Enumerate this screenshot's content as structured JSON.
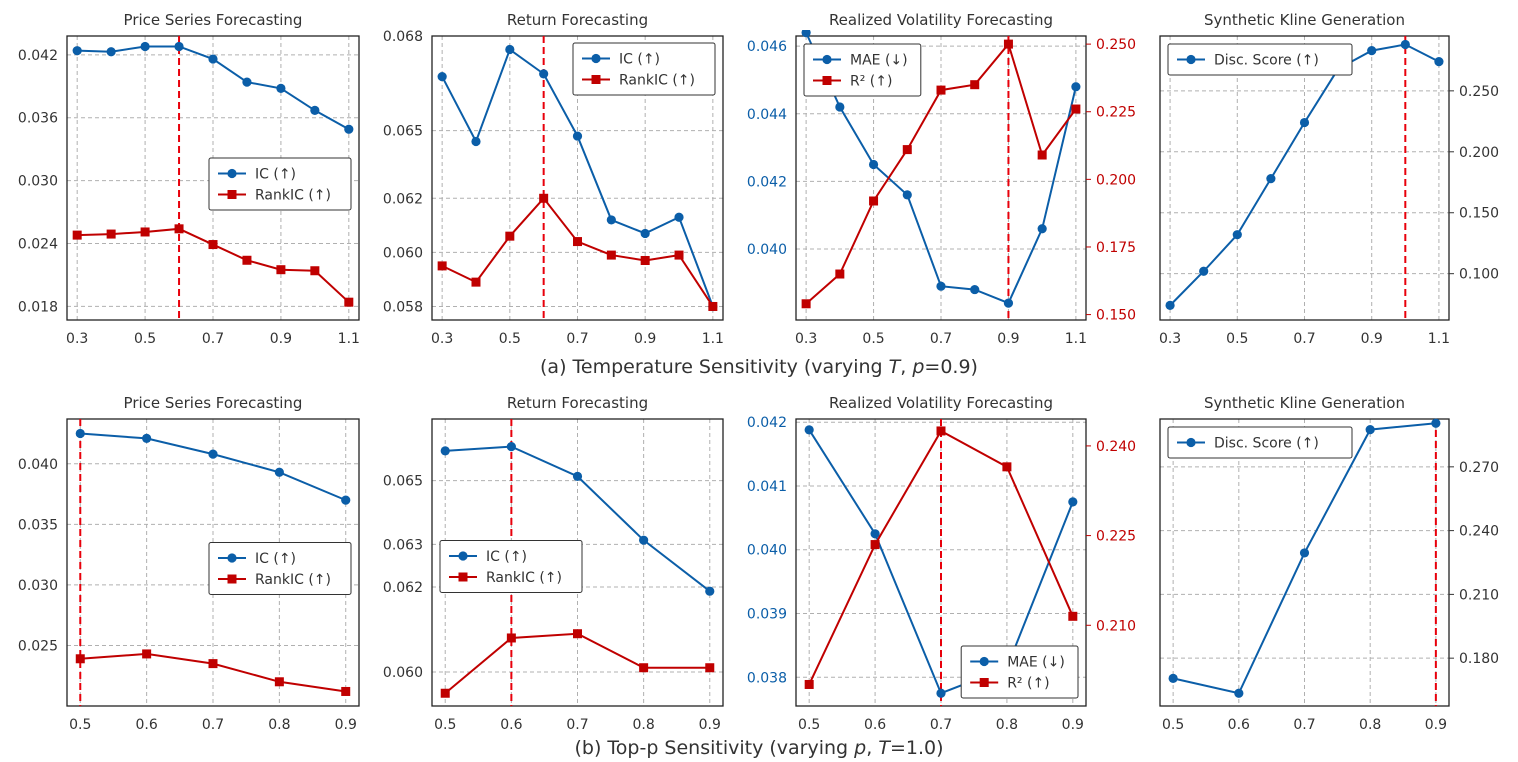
{
  "colors": {
    "blue": "#0b5ea8",
    "red": "#c00000",
    "marker_line": "#e8000b",
    "grid": "#b0b0b0",
    "text": "#333333"
  },
  "captions": {
    "row_a": {
      "prefix": "(a) Temperature Sensitivity (varying ",
      "var1": "T",
      "mid": ", ",
      "var2": "p",
      "suffix": "=0.9)"
    },
    "row_b": {
      "prefix": "(b) Top-p Sensitivity (varying ",
      "var1": "p",
      "mid": ", ",
      "var2": "T",
      "suffix": "=1.0)"
    }
  },
  "chart_data": [
    {
      "type": "line",
      "title": "Price Series Forecasting",
      "x": [
        0.3,
        0.4,
        0.5,
        0.6,
        0.7,
        0.8,
        0.9,
        1.0,
        1.1
      ],
      "xlim": [
        0.27,
        1.13
      ],
      "xticks": [
        0.3,
        0.5,
        0.7,
        0.9,
        1.1
      ],
      "xtick_labels": [
        "0.3",
        "0.5",
        "0.7",
        "0.9",
        "1.1"
      ],
      "ylim": [
        0.0167,
        0.0438
      ],
      "yticks": [
        0.018,
        0.024,
        0.03,
        0.036,
        0.042
      ],
      "ytick_labels": [
        "0.018",
        "0.024",
        "0.030",
        "0.036",
        "0.042"
      ],
      "series": [
        {
          "name": "IC (↑)",
          "color": "#0b5ea8",
          "marker": "circle",
          "values": [
            0.0424,
            0.0423,
            0.0428,
            0.0428,
            0.0416,
            0.0394,
            0.0388,
            0.0367,
            0.0349
          ]
        },
        {
          "name": "RankIC (↑)",
          "color": "#c00000",
          "marker": "square",
          "values": [
            0.0248,
            0.0249,
            0.0251,
            0.0254,
            0.0239,
            0.0224,
            0.0215,
            0.0214,
            0.0184
          ]
        }
      ],
      "vline": 0.6,
      "legend": "center-right"
    },
    {
      "type": "line",
      "title": "Return Forecasting",
      "x": [
        0.3,
        0.4,
        0.5,
        0.6,
        0.7,
        0.8,
        0.9,
        1.0,
        1.1
      ],
      "xlim": [
        0.27,
        1.13
      ],
      "xticks": [
        0.3,
        0.5,
        0.7,
        0.9,
        1.1
      ],
      "xtick_labels": [
        "0.3",
        "0.5",
        "0.7",
        "0.9",
        "1.1"
      ],
      "ylim": [
        0.0575,
        0.068
      ],
      "yticks": [
        0.058,
        0.06,
        0.062,
        0.0645,
        0.068
      ],
      "ytick_labels": [
        "0.058",
        "0.060",
        "0.062",
        "0.065",
        "0.068"
      ],
      "series": [
        {
          "name": "IC (↑)",
          "color": "#0b5ea8",
          "marker": "circle",
          "values": [
            0.0665,
            0.0641,
            0.0675,
            0.0666,
            0.0643,
            0.0612,
            0.0607,
            0.0613,
            0.058
          ]
        },
        {
          "name": "RankIC (↑)",
          "color": "#c00000",
          "marker": "square",
          "values": [
            0.0595,
            0.0589,
            0.0606,
            0.062,
            0.0604,
            0.0599,
            0.0597,
            0.0599,
            0.058
          ]
        }
      ],
      "vline": 0.6,
      "legend": "top-right"
    },
    {
      "type": "line",
      "title": "Realized Volatility Forecasting",
      "x": [
        0.3,
        0.4,
        0.5,
        0.6,
        0.7,
        0.8,
        0.9,
        1.0,
        1.1
      ],
      "xlim": [
        0.27,
        1.13
      ],
      "xticks": [
        0.3,
        0.5,
        0.7,
        0.9,
        1.1
      ],
      "xtick_labels": [
        "0.3",
        "0.5",
        "0.7",
        "0.9",
        "1.1"
      ],
      "ylim": [
        0.0379,
        0.0463
      ],
      "yticks": [
        0.04,
        0.042,
        0.044,
        0.046
      ],
      "ytick_labels": [
        "0.040",
        "0.042",
        "0.044",
        "0.046"
      ],
      "y2lim": [
        0.148,
        0.253
      ],
      "y2ticks": [
        0.15,
        0.175,
        0.2,
        0.225,
        0.25
      ],
      "y2tick_labels": [
        "0.150",
        "0.175",
        "0.200",
        "0.225",
        "0.250"
      ],
      "series": [
        {
          "name": "MAE (↓)",
          "color": "#0b5ea8",
          "marker": "circle",
          "axis": "left",
          "values": [
            0.0464,
            0.0442,
            0.0425,
            0.0416,
            0.0389,
            0.0388,
            0.0384,
            0.0406,
            0.0448
          ]
        },
        {
          "name": "R² (↑)",
          "color": "#c00000",
          "marker": "square",
          "axis": "right",
          "values": [
            0.154,
            0.165,
            0.192,
            0.211,
            0.233,
            0.235,
            0.25,
            0.209,
            0.226
          ]
        }
      ],
      "vline": 0.9,
      "legend": "top-left"
    },
    {
      "type": "line",
      "title": "Synthetic Kline Generation",
      "x": [
        0.3,
        0.4,
        0.5,
        0.6,
        0.7,
        0.8,
        0.9,
        1.0,
        1.1
      ],
      "xlim": [
        0.27,
        1.13
      ],
      "xticks": [
        0.3,
        0.5,
        0.7,
        0.9,
        1.1
      ],
      "xtick_labels": [
        "0.3",
        "0.5",
        "0.7",
        "0.9",
        "1.1"
      ],
      "y2lim": [
        0.062,
        0.295
      ],
      "y2ticks": [
        0.1,
        0.15,
        0.2,
        0.25
      ],
      "y2tick_labels": [
        "0.100",
        "0.150",
        "0.200",
        "0.250"
      ],
      "series": [
        {
          "name": "Disc. Score (↑)",
          "color": "#0b5ea8",
          "marker": "circle",
          "axis": "right",
          "values": [
            0.074,
            0.102,
            0.132,
            0.178,
            0.224,
            0.268,
            0.283,
            0.288,
            0.274
          ]
        }
      ],
      "vline": 1.0,
      "legend": "top-left"
    },
    {
      "type": "line",
      "title": "Price Series Forecasting",
      "x": [
        0.5,
        0.6,
        0.7,
        0.8,
        0.9
      ],
      "xlim": [
        0.48,
        0.92
      ],
      "xticks": [
        0.5,
        0.6,
        0.7,
        0.8,
        0.9
      ],
      "xtick_labels": [
        "0.5",
        "0.6",
        "0.7",
        "0.8",
        "0.9"
      ],
      "ylim": [
        0.02,
        0.0437
      ],
      "yticks": [
        0.025,
        0.03,
        0.035,
        0.04
      ],
      "ytick_labels": [
        "0.025",
        "0.030",
        "0.035",
        "0.040"
      ],
      "series": [
        {
          "name": "IC (↑)",
          "color": "#0b5ea8",
          "marker": "circle",
          "values": [
            0.0425,
            0.0421,
            0.0408,
            0.0393,
            0.037
          ]
        },
        {
          "name": "RankIC (↑)",
          "color": "#c00000",
          "marker": "square",
          "values": [
            0.0239,
            0.0243,
            0.0235,
            0.022,
            0.0212
          ]
        }
      ],
      "vline": 0.5,
      "legend": "center-right"
    },
    {
      "type": "line",
      "title": "Return Forecasting",
      "x": [
        0.5,
        0.6,
        0.7,
        0.8,
        0.9
      ],
      "xlim": [
        0.48,
        0.92
      ],
      "xticks": [
        0.5,
        0.6,
        0.7,
        0.8,
        0.9
      ],
      "xtick_labels": [
        "0.5",
        "0.6",
        "0.7",
        "0.8",
        "0.9"
      ],
      "ylim": [
        0.0592,
        0.06595
      ],
      "yticks": [
        0.06,
        0.062,
        0.063,
        0.0645
      ],
      "ytick_labels": [
        "0.060",
        "0.062",
        "0.063",
        "0.065"
      ],
      "series": [
        {
          "name": "IC (↑)",
          "color": "#0b5ea8",
          "marker": "circle",
          "values": [
            0.0652,
            0.0653,
            0.0646,
            0.0631,
            0.0619
          ]
        },
        {
          "name": "RankIC (↑)",
          "color": "#c00000",
          "marker": "square",
          "values": [
            0.0595,
            0.0608,
            0.0609,
            0.0601,
            0.0601
          ]
        }
      ],
      "vline": 0.6,
      "legend": "center-left"
    },
    {
      "type": "line",
      "title": "Realized Volatility Forecasting",
      "x": [
        0.5,
        0.6,
        0.7,
        0.8,
        0.9
      ],
      "xlim": [
        0.48,
        0.92
      ],
      "xticks": [
        0.5,
        0.6,
        0.7,
        0.8,
        0.9
      ],
      "xtick_labels": [
        "0.5",
        "0.6",
        "0.7",
        "0.8",
        "0.9"
      ],
      "ylim": [
        0.03755,
        0.04205
      ],
      "yticks": [
        0.038,
        0.039,
        0.04,
        0.041,
        0.042
      ],
      "ytick_labels": [
        "0.038",
        "0.039",
        "0.040",
        "0.041",
        "0.042"
      ],
      "y2lim": [
        0.1965,
        0.2445
      ],
      "y2ticks": [
        0.21,
        0.225,
        0.24
      ],
      "y2tick_labels": [
        "0.210",
        "0.225",
        "0.240"
      ],
      "series": [
        {
          "name": "MAE (↓)",
          "color": "#0b5ea8",
          "marker": "circle",
          "axis": "left",
          "values": [
            0.04188,
            0.04025,
            0.03775,
            0.03815,
            0.04075
          ]
        },
        {
          "name": "R² (↑)",
          "color": "#c00000",
          "marker": "square",
          "axis": "right",
          "values": [
            0.2001,
            0.2235,
            0.2425,
            0.2365,
            0.2115
          ]
        }
      ],
      "vline": 0.7,
      "legend": "bottom-right"
    },
    {
      "type": "line",
      "title": "Synthetic Kline Generation",
      "x": [
        0.5,
        0.6,
        0.7,
        0.8,
        0.9
      ],
      "xlim": [
        0.48,
        0.92
      ],
      "xticks": [
        0.5,
        0.6,
        0.7,
        0.8,
        0.9
      ],
      "xtick_labels": [
        "0.5",
        "0.6",
        "0.7",
        "0.8",
        "0.9"
      ],
      "y2lim": [
        0.1575,
        0.2925
      ],
      "y2ticks": [
        0.18,
        0.21,
        0.24,
        0.27
      ],
      "y2tick_labels": [
        "0.180",
        "0.210",
        "0.240",
        "0.270"
      ],
      "series": [
        {
          "name": "Disc. Score (↑)",
          "color": "#0b5ea8",
          "marker": "circle",
          "axis": "right",
          "values": [
            0.1705,
            0.1635,
            0.2295,
            0.2875,
            0.2905
          ]
        }
      ],
      "vline": 0.9,
      "legend": "top-left"
    }
  ]
}
